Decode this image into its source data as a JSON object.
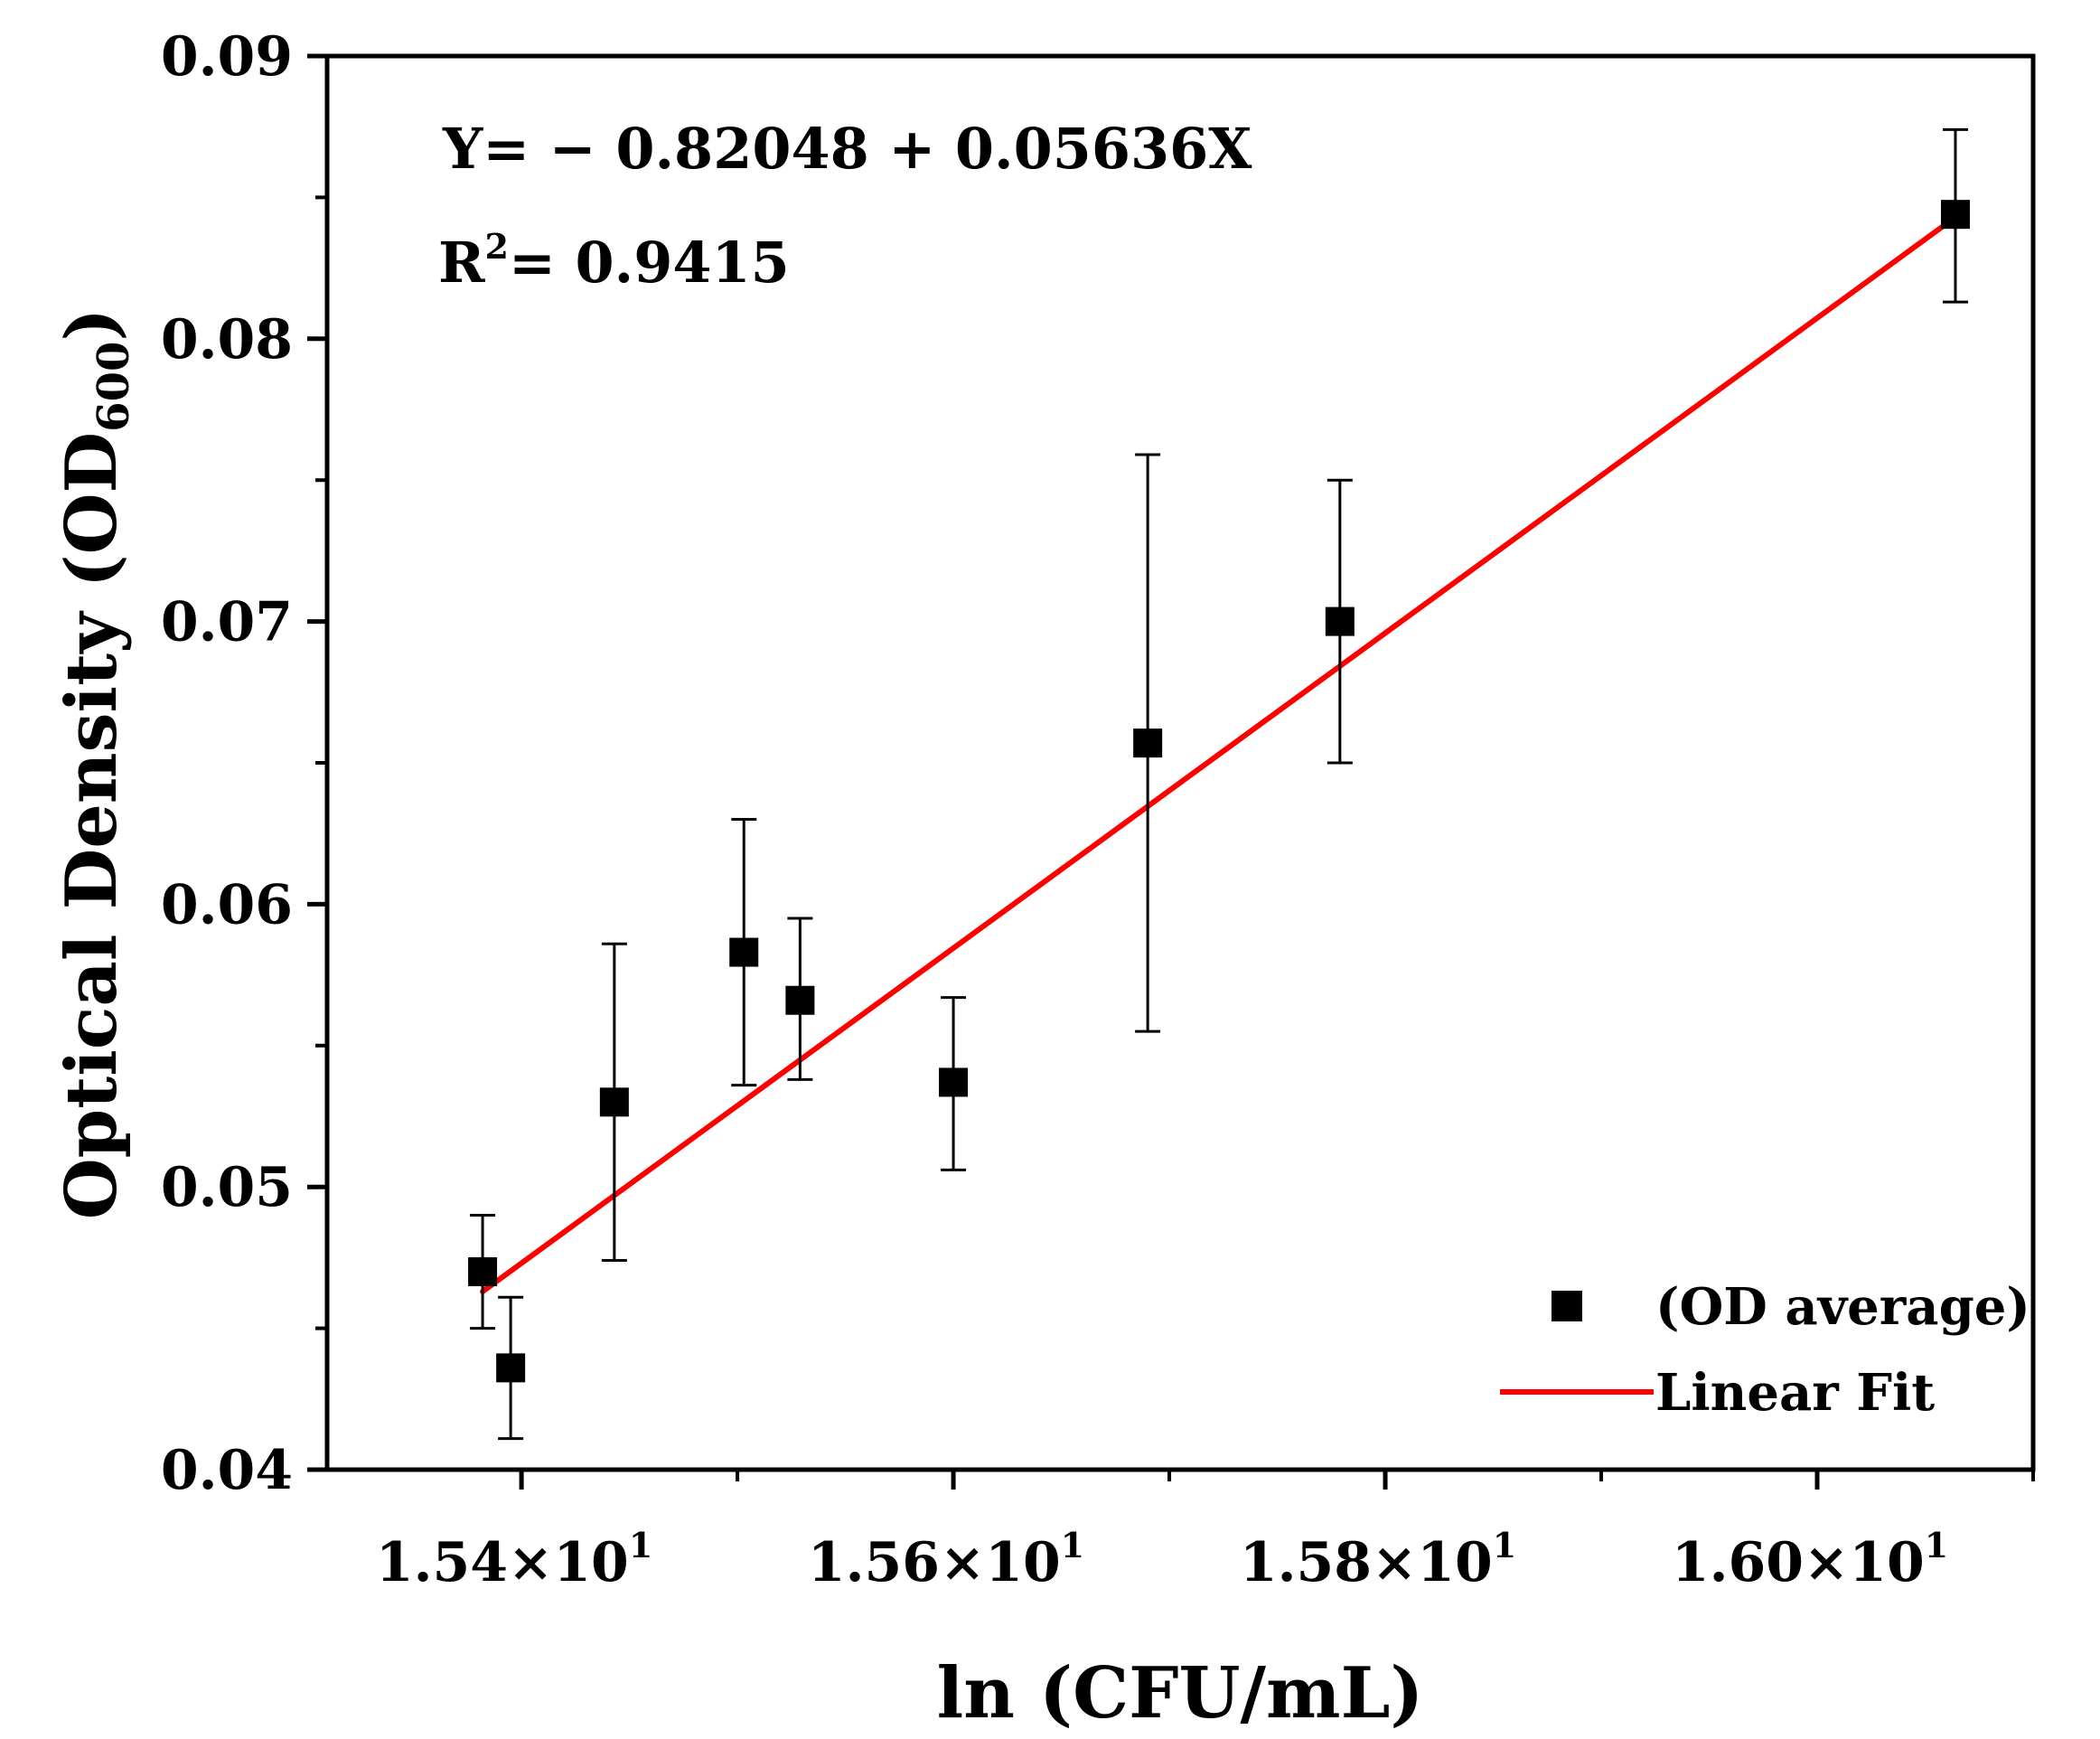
{
  "chart_data": {
    "type": "scatter",
    "title": "",
    "xlabel": "ln (CFU/mL)",
    "ylabel_main": "Optical Density (OD",
    "ylabel_sub": "600",
    "ylabel_close": ")",
    "xlim": [
      15.31,
      16.1
    ],
    "ylim": [
      0.04,
      0.09
    ],
    "x_ticks": [
      15.4,
      15.6,
      15.8,
      16.0
    ],
    "x_tick_labels": [
      {
        "mant": "1.54×10",
        "exp": "1"
      },
      {
        "mant": "1.56×10",
        "exp": "1"
      },
      {
        "mant": "1.58×10",
        "exp": "1"
      },
      {
        "mant": "1.60×10",
        "exp": "1"
      }
    ],
    "x_minor_ticks": [
      15.3,
      15.5,
      15.7,
      15.9,
      16.1
    ],
    "y_ticks": [
      0.04,
      0.05,
      0.06,
      0.07,
      0.08,
      0.09
    ],
    "y_tick_labels": [
      "0.04",
      "0.05",
      "0.06",
      "0.07",
      "0.08",
      "0.09"
    ],
    "y_minor_ticks": [
      0.045,
      0.055,
      0.065,
      0.075,
      0.085
    ],
    "series": [
      {
        "name": "(OD average)",
        "type": "scatter",
        "x": [
          15.382,
          15.395,
          15.443,
          15.503,
          15.529,
          15.6,
          15.69,
          15.779,
          16.064
        ],
        "y": [
          0.047,
          0.0436,
          0.053,
          0.0583,
          0.0566,
          0.0537,
          0.0657,
          0.07,
          0.0844
        ],
        "err_low": [
          0.045,
          0.0411,
          0.0474,
          0.0536,
          0.0538,
          0.0506,
          0.0555,
          0.065,
          0.0813
        ],
        "err_high": [
          0.049,
          0.0461,
          0.0586,
          0.063,
          0.0595,
          0.0567,
          0.0759,
          0.075,
          0.0874
        ],
        "color": "#000000"
      },
      {
        "name": "Linear Fit",
        "type": "line",
        "x": [
          15.382,
          16.064
        ],
        "y": [
          0.0463,
          0.0843
        ],
        "color": "#ff0000"
      }
    ],
    "annotations": {
      "equation": "Y= − 0.82048 + 0.05636X",
      "r2_prefix": "R",
      "r2_sup": "2",
      "r2_value": "= 0.9415"
    },
    "legend_position": "bottom-right",
    "grid": false
  }
}
